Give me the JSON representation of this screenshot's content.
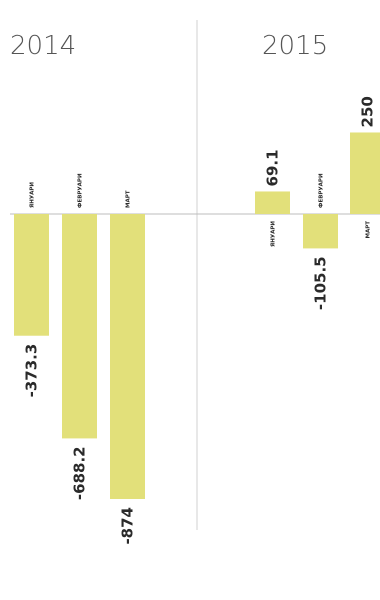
{
  "chart_data": {
    "type": "bar",
    "orientation": "vertical",
    "bar_color": "#e2e07a",
    "text_color": "#2a2a2a",
    "divider_color": "#d0d0d0",
    "baseline_color": "#bdbdbd",
    "ylim": [
      -874,
      250
    ],
    "groups": [
      {
        "label": "2014",
        "categories": [
          "ЯНУАРИ",
          "ФЕВРУАРИ",
          "МАРТ"
        ],
        "values": [
          -373.3,
          -688.2,
          -874
        ],
        "value_labels": [
          "-373.3",
          "-688.2",
          "-874"
        ]
      },
      {
        "label": "2015",
        "categories": [
          "ЯНУАРИ",
          "ФЕВРУАРИ",
          "МАРТ"
        ],
        "values": [
          69.1,
          -105.5,
          250
        ],
        "value_labels": [
          "69.1",
          "-105.5",
          "250"
        ]
      }
    ]
  }
}
